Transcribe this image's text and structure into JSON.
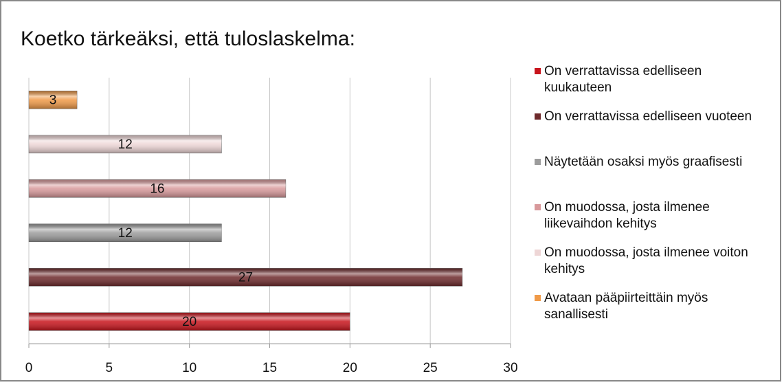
{
  "chart_data": {
    "type": "bar",
    "orientation": "horizontal",
    "title": "Koetko tärkeäksi, että tuloslaskelma:",
    "series": [
      {
        "name": "On verrattavissa edelliseen kuukauteen",
        "color": "#c8141c",
        "values": [
          20
        ]
      },
      {
        "name": "On verrattavissa edelliseen vuoteen",
        "color": "#6e2a2c",
        "values": [
          27
        ]
      },
      {
        "name": "Näytetään osaksi myös graafisesti",
        "color": "#9c9c9c",
        "values": [
          12
        ]
      },
      {
        "name": "On muodossa, josta ilmenee liikevaihdon kehitys",
        "color": "#d8999b",
        "values": [
          16
        ]
      },
      {
        "name": "On muodossa, josta ilmenee voiton kehitys",
        "color": "#eed6d6",
        "values": [
          12
        ]
      },
      {
        "name": "Avataan pääpiirteittäin myös sanallisesti",
        "color": "#f09a48",
        "values": [
          3
        ]
      }
    ],
    "xlim": [
      0,
      30
    ],
    "xticks": [
      0,
      5,
      10,
      15,
      20,
      25,
      30
    ],
    "grid": true,
    "legend": "right"
  }
}
